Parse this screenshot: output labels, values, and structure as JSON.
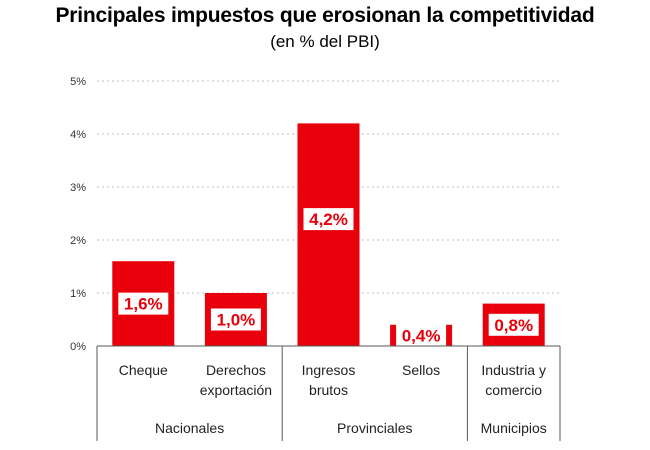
{
  "chart_data": {
    "type": "bar",
    "title": "Principales impuestos que erosionan la competitividad",
    "subtitle": "(en % del PBI)",
    "xlabel": "",
    "ylabel": "",
    "ylim": [
      0,
      5
    ],
    "yticks": [
      "0%",
      "1%",
      "2%",
      "3%",
      "4%",
      "5%"
    ],
    "categories": [
      {
        "lines": [
          "Cheque"
        ],
        "value": 1.6,
        "label": "1,6%",
        "group": "Nacionales"
      },
      {
        "lines": [
          "Derechos",
          "exportación"
        ],
        "value": 1.0,
        "label": "1,0%",
        "group": "Nacionales"
      },
      {
        "lines": [
          "Ingresos",
          "brutos"
        ],
        "value": 4.2,
        "label": "4,2%",
        "group": "Provinciales"
      },
      {
        "lines": [
          "Sellos"
        ],
        "value": 0.4,
        "label": "0,4%",
        "group": "Provinciales"
      },
      {
        "lines": [
          "Industria y",
          "comercio"
        ],
        "value": 0.8,
        "label": "0,8%",
        "group": "Municipios"
      }
    ],
    "groups": [
      "Nacionales",
      "Provinciales",
      "Municipios"
    ],
    "grid": true,
    "legend": "none"
  },
  "colors": {
    "bar": "#e8000b",
    "grid": "#bfbfbf",
    "axis": "#595959"
  }
}
